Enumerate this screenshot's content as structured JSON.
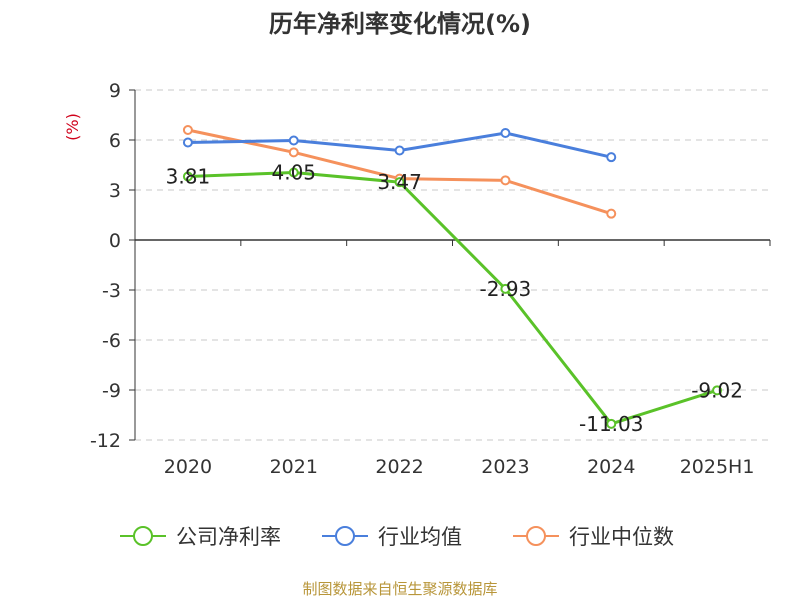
{
  "chart_data": {
    "type": "line",
    "title": "历年净利率变化情况(%)",
    "ylabel": "(%)",
    "xlabel": "",
    "categories": [
      "2020",
      "2021",
      "2022",
      "2023",
      "2024",
      "2025H1"
    ],
    "ylim": [
      -12,
      9
    ],
    "yticks": [
      9,
      6,
      3,
      0,
      -3,
      -6,
      -9,
      -12
    ],
    "grid": true,
    "legend_position": "bottom",
    "series": [
      {
        "name": "公司净利率",
        "color": "#5ac229",
        "values": [
          3.81,
          4.05,
          3.47,
          -2.93,
          -11.03,
          -9.02
        ],
        "labels": [
          "3.81",
          "4.05",
          "3.47",
          "-2.93",
          "-11.03",
          "-9.02"
        ]
      },
      {
        "name": "行业均值",
        "color": "#4a7fdc",
        "values": [
          5.85,
          5.97,
          5.37,
          6.42,
          4.97,
          null
        ]
      },
      {
        "name": "行业中位数",
        "color": "#f5915c",
        "values": [
          6.6,
          5.26,
          3.68,
          3.58,
          1.58,
          null
        ]
      }
    ]
  },
  "source": "制图数据来自恒生聚源数据库"
}
